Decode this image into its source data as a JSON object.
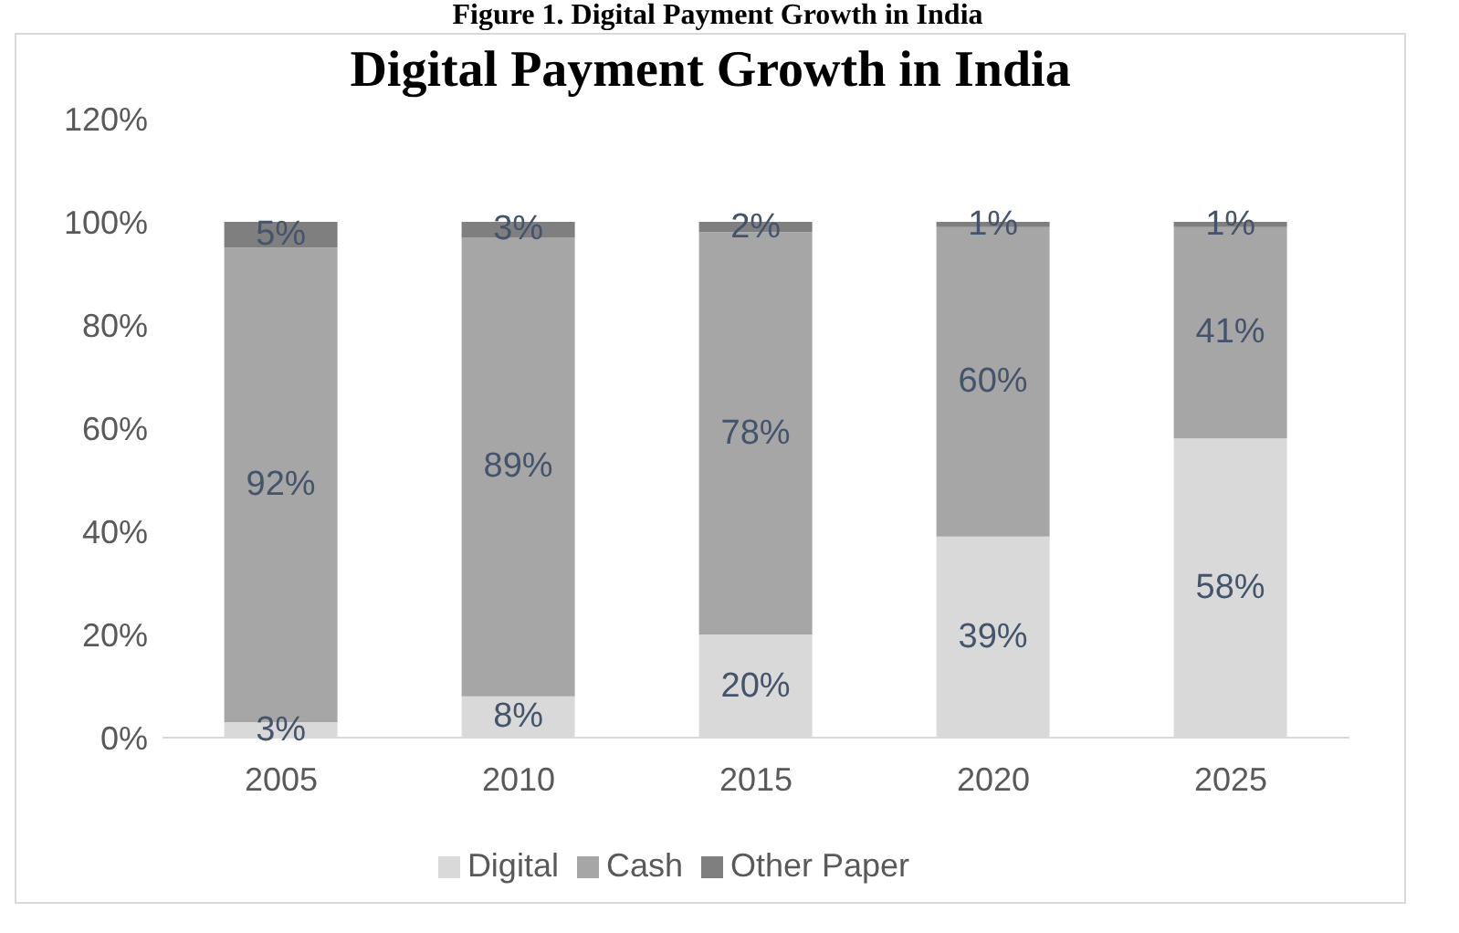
{
  "chart_data": {
    "type": "bar",
    "title": "Digital Payment Growth in India",
    "annotations": [
      "Figure 1. Digital Payment Growth in India"
    ],
    "stacked": true,
    "categories": [
      "2005",
      "2010",
      "2015",
      "2020",
      "2025"
    ],
    "series": [
      {
        "name": "Digital",
        "color": "#d9d9d9",
        "values": [
          3,
          8,
          20,
          39,
          58
        ],
        "value_labels": [
          "3%",
          "8%",
          "20%",
          "39%",
          "58%"
        ]
      },
      {
        "name": "Cash",
        "color": "#a6a6a6",
        "values": [
          92,
          89,
          78,
          60,
          41
        ],
        "value_labels": [
          "92%",
          "89%",
          "78%",
          "60%",
          "41%"
        ]
      },
      {
        "name": "Other Paper",
        "color": "#7f7f7f",
        "values": [
          5,
          3,
          2,
          1,
          1
        ],
        "value_labels": [
          "5%",
          "3%",
          "2%",
          "1%",
          "1%"
        ]
      }
    ],
    "ylim": [
      0,
      120
    ],
    "yticks": [
      {
        "value": 0,
        "label": "0%"
      },
      {
        "value": 20,
        "label": "20%"
      },
      {
        "value": 40,
        "label": "40%"
      },
      {
        "value": 60,
        "label": "60%"
      },
      {
        "value": 80,
        "label": "80%"
      },
      {
        "value": 100,
        "label": "100%"
      },
      {
        "value": 120,
        "label": "120%"
      }
    ],
    "grid": false,
    "legend": "bottom"
  }
}
